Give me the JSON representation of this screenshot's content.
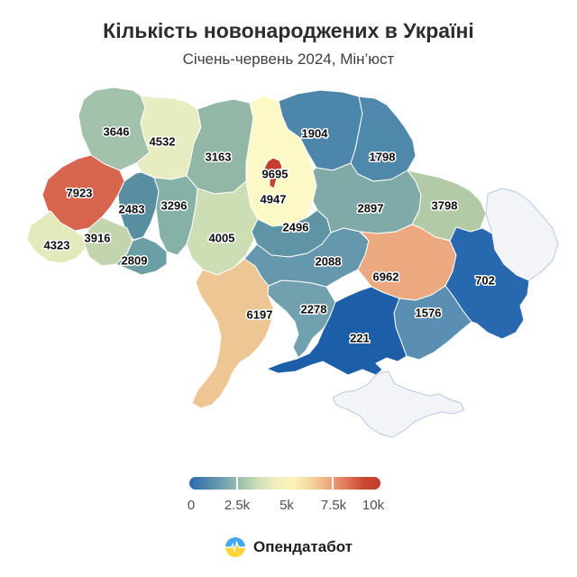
{
  "title": "Кількість новонароджених в Україні",
  "subtitle": "Січень-червень 2024, Мін’юст",
  "legend": {
    "ticks": [
      "0",
      "2.5k",
      "5k",
      "7.5k",
      "10k"
    ],
    "min": 0,
    "max": 10000,
    "gradient_colors": [
      "#2a6ab0",
      "#4d86ab",
      "#74a3ae",
      "#9ec3ad",
      "#cfe0b6",
      "#f2efc0",
      "#fbf3b9",
      "#f4d49c",
      "#eeab7e",
      "#e0795a",
      "#c94a33",
      "#c43b2a"
    ],
    "divider_positions_pct": [
      25,
      75
    ]
  },
  "footer": {
    "brand": "Опендатабот",
    "logo_blue": "#3fa9f5",
    "logo_yellow": "#ffd43b"
  },
  "map": {
    "border_color": "#ffffff",
    "no_data_fill": "#f2f4f8",
    "no_data_stroke": "#bccadb",
    "chart_data": {
      "type": "choropleth-map",
      "title": "Кількість новонароджених в Україні",
      "subtitle": "Січень-червень 2024, Мін’юст",
      "value_range": [
        0,
        10000
      ],
      "legend_ticks": [
        "0",
        "2.5k",
        "5k",
        "7.5k",
        "10k"
      ]
    },
    "regions": [
      {
        "id": "volyn",
        "value": "3646",
        "color": "#a3c2ab"
      },
      {
        "id": "rivne",
        "value": "4532",
        "color": "#e8edc1"
      },
      {
        "id": "zhytomyr",
        "value": "3163",
        "color": "#92b7a7"
      },
      {
        "id": "kyiv_obl",
        "value": "4947",
        "color": "#fcf9c7"
      },
      {
        "id": "chernihiv",
        "value": "1904",
        "color": "#4c86aa"
      },
      {
        "id": "sumy",
        "value": "1798",
        "color": "#4e88ab"
      },
      {
        "id": "lviv",
        "value": "7923",
        "color": "#d7644d"
      },
      {
        "id": "ternopil",
        "value": "2483",
        "color": "#578fa0"
      },
      {
        "id": "khmelnytskyi",
        "value": "3296",
        "color": "#86b1a6"
      },
      {
        "id": "vinnytsia",
        "value": "4005",
        "color": "#cdddb4"
      },
      {
        "id": "cherkasy",
        "value": "2496",
        "color": "#5e94a4"
      },
      {
        "id": "poltava",
        "value": "2897",
        "color": "#80aaa8"
      },
      {
        "id": "kharkiv",
        "value": "3798",
        "color": "#b3caa6"
      },
      {
        "id": "luhansk",
        "value": null,
        "color": "#f2f4f8"
      },
      {
        "id": "zakarpattia",
        "value": "4323",
        "color": "#e4e9bc"
      },
      {
        "id": "ivano_frankivsk",
        "value": "3916",
        "color": "#c2d5ae"
      },
      {
        "id": "chernivtsi",
        "value": "2809",
        "color": "#6b9fa5"
      },
      {
        "id": "odesa",
        "value": "6197",
        "color": "#edc694"
      },
      {
        "id": "mykolaiv",
        "value": "2278",
        "color": "#71a1af"
      },
      {
        "id": "kirovohrad",
        "value": "2088",
        "color": "#6598ac"
      },
      {
        "id": "dnipro",
        "value": "6962",
        "color": "#eca87e"
      },
      {
        "id": "donetsk",
        "value": "702",
        "color": "#2768ae"
      },
      {
        "id": "zaporizhzhia",
        "value": "1576",
        "color": "#5a8eb2"
      },
      {
        "id": "kherson",
        "value": "221",
        "color": "#1c5ea8"
      },
      {
        "id": "crimea",
        "value": null,
        "color": "#f2f4f8"
      },
      {
        "id": "kyiv_city",
        "value": "9695",
        "color": "#c53e2d"
      }
    ]
  }
}
